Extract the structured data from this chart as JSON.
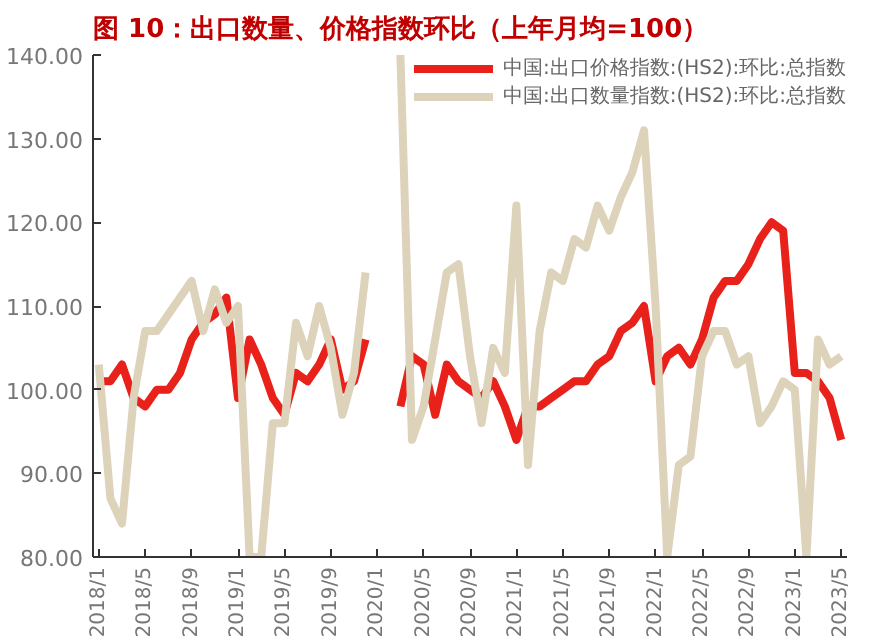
{
  "chart_data": {
    "type": "line",
    "title": "图 10：出口数量、价格指数环比（上年月均=100）",
    "categories": [
      "2018/1",
      null,
      null,
      null,
      "2018/5",
      null,
      null,
      null,
      "2018/9",
      null,
      null,
      null,
      "2019/1",
      null,
      null,
      null,
      "2019/5",
      null,
      null,
      null,
      "2019/9",
      null,
      null,
      null,
      "2020/1",
      null,
      null,
      null,
      "2020/5",
      null,
      null,
      null,
      "2020/9",
      null,
      null,
      null,
      "2021/1",
      null,
      null,
      null,
      "2021/5",
      null,
      null,
      null,
      "2021/9",
      null,
      null,
      null,
      "2022/1",
      null,
      null,
      null,
      "2022/5",
      null,
      null,
      null,
      "2022/9",
      null,
      null,
      null,
      "2023/1",
      null,
      null,
      null,
      "2023/5"
    ],
    "series": [
      {
        "name": "中国:出口价格指数:(HS2):环比:总指数",
        "color": "#e8211b",
        "values": [
          101,
          101,
          103,
          99,
          98,
          100,
          100,
          102,
          106,
          108,
          109,
          111,
          99,
          106,
          103,
          99,
          97,
          102,
          101,
          103,
          106,
          100,
          101,
          106,
          null,
          null,
          98,
          104,
          103,
          97,
          103,
          101,
          100,
          99,
          101,
          98,
          94,
          98,
          98,
          99,
          100,
          101,
          101,
          103,
          104,
          107,
          108,
          110,
          101,
          104,
          105,
          103,
          106,
          111,
          113,
          113,
          115,
          118,
          120,
          119,
          102,
          102,
          101,
          99,
          94
        ]
      },
      {
        "name": "中国:出口数量指数:(HS2):环比:总指数",
        "color": "#ddd3bb",
        "values": [
          103,
          87,
          84,
          99,
          107,
          107,
          109,
          111,
          113,
          107,
          112,
          108,
          110,
          80,
          80,
          96,
          96,
          108,
          104,
          110,
          105,
          97,
          102,
          114,
          null,
          null,
          140,
          94,
          98,
          106,
          114,
          115,
          104,
          96,
          105,
          102,
          122,
          91,
          107,
          114,
          113,
          118,
          117,
          122,
          119,
          123,
          126,
          131,
          110,
          80,
          91,
          92,
          104,
          107,
          107,
          103,
          104,
          96,
          98,
          101,
          100,
          80,
          106,
          103,
          104
        ]
      }
    ],
    "ylim": [
      80,
      140
    ],
    "yticks": [
      {
        "value": 80,
        "label": "80.00"
      },
      {
        "value": 90,
        "label": "90.00"
      },
      {
        "value": 100,
        "label": "100.00"
      },
      {
        "value": 110,
        "label": "110.00"
      },
      {
        "value": 120,
        "label": "120.00"
      },
      {
        "value": 130,
        "label": "130.00"
      },
      {
        "value": 140,
        "label": "140.00"
      }
    ],
    "legend": "top right",
    "grid": false,
    "line_style": "solid"
  }
}
